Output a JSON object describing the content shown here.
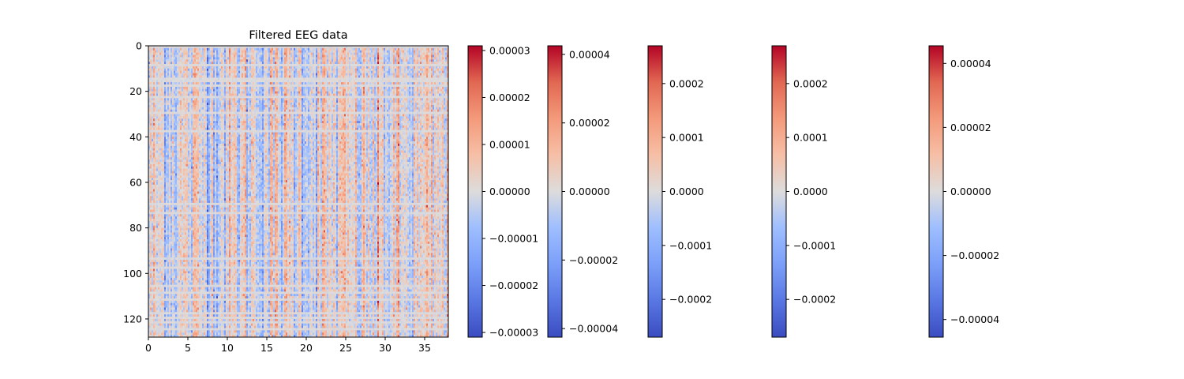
{
  "chart_data": [
    {
      "type": "heatmap",
      "title": "Filtered EEG data",
      "xlabel": "",
      "ylabel": "",
      "x_range": [
        0,
        38
      ],
      "y_range": [
        128,
        0
      ],
      "x_ticks": [
        "0",
        "5",
        "10",
        "15",
        "20",
        "25",
        "30",
        "35"
      ],
      "y_ticks": [
        "0",
        "20",
        "40",
        "60",
        "80",
        "100",
        "120"
      ],
      "colormap": "coolwarm",
      "rows": 128,
      "description_values": "dense near-zero filtered signal, values within about ±0.00003",
      "grid": false
    },
    {
      "type": "colorbar",
      "colormap": "coolwarm",
      "vmin": -3.1e-05,
      "vmax": 3.1e-05,
      "ticks": [
        -3e-05,
        -2e-05,
        -1e-05,
        0,
        1e-05,
        2e-05,
        3e-05
      ],
      "tick_labels": [
        "−0.00003",
        "−0.00002",
        "−0.00001",
        "0.00000",
        "0.00001",
        "0.00002",
        "0.00003"
      ]
    },
    {
      "type": "colorbar",
      "colormap": "coolwarm",
      "vmin": -4.25e-05,
      "vmax": 4.25e-05,
      "ticks": [
        -4e-05,
        -2e-05,
        0,
        2e-05,
        4e-05
      ],
      "tick_labels": [
        "−0.00004",
        "−0.00002",
        "0.00000",
        "0.00002",
        "0.00004"
      ]
    },
    {
      "type": "colorbar",
      "colormap": "coolwarm",
      "vmin": -0.00027,
      "vmax": 0.00027,
      "ticks": [
        -0.0002,
        -0.0001,
        0,
        0.0001,
        0.0002
      ],
      "tick_labels": [
        "−0.0002",
        "−0.0001",
        "0.0000",
        "0.0001",
        "0.0002"
      ]
    },
    {
      "type": "colorbar",
      "colormap": "coolwarm",
      "vmin": -0.00027,
      "vmax": 0.00027,
      "ticks": [
        -0.0002,
        -0.0001,
        0,
        0.0001,
        0.0002
      ],
      "tick_labels": [
        "−0.0002",
        "−0.0001",
        "0.0000",
        "0.0001",
        "0.0002"
      ]
    },
    {
      "type": "colorbar",
      "colormap": "coolwarm",
      "vmin": -4.55e-05,
      "vmax": 4.55e-05,
      "ticks": [
        -4e-05,
        -2e-05,
        0,
        2e-05,
        4e-05
      ],
      "tick_labels": [
        "−0.00004",
        "−0.00002",
        "0.00000",
        "0.00002",
        "0.00004"
      ]
    }
  ]
}
